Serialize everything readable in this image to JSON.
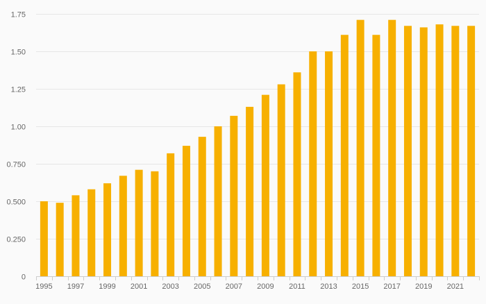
{
  "colors": {
    "background": "#fafafa",
    "bar": "#f7b000",
    "grid": "#e6e6e6",
    "axis": "#cccccc",
    "label": "#666666"
  },
  "chart_data": {
    "type": "bar",
    "title": "",
    "xlabel": "",
    "ylabel": "",
    "categories": [
      "1995",
      "1996",
      "1997",
      "1998",
      "1999",
      "2000",
      "2001",
      "2002",
      "2003",
      "2004",
      "2005",
      "2006",
      "2007",
      "2008",
      "2009",
      "2010",
      "2011",
      "2012",
      "2013",
      "2014",
      "2015",
      "2016",
      "2017",
      "2018",
      "2019",
      "2020",
      "2021",
      "2022"
    ],
    "values": [
      0.5,
      0.49,
      0.54,
      0.58,
      0.62,
      0.67,
      0.71,
      0.7,
      0.82,
      0.87,
      0.93,
      1.0,
      1.07,
      1.13,
      1.21,
      1.28,
      1.36,
      1.5,
      1.5,
      1.61,
      1.71,
      1.61,
      1.71,
      1.67,
      1.66,
      1.68,
      1.67,
      1.67
    ],
    "ylim": [
      0,
      1.75
    ],
    "y_ticks": [
      "0",
      "0.250",
      "0.500",
      "0.750",
      "1.00",
      "1.25",
      "1.50",
      "1.75"
    ],
    "y_tick_values": [
      0,
      0.25,
      0.5,
      0.75,
      1.0,
      1.25,
      1.5,
      1.75
    ],
    "x_tick_labels": [
      "1995",
      "1997",
      "1999",
      "2001",
      "2003",
      "2005",
      "2007",
      "2009",
      "2011",
      "2013",
      "2015",
      "2017",
      "2019",
      "2021"
    ],
    "grid": true,
    "legend": "none"
  }
}
